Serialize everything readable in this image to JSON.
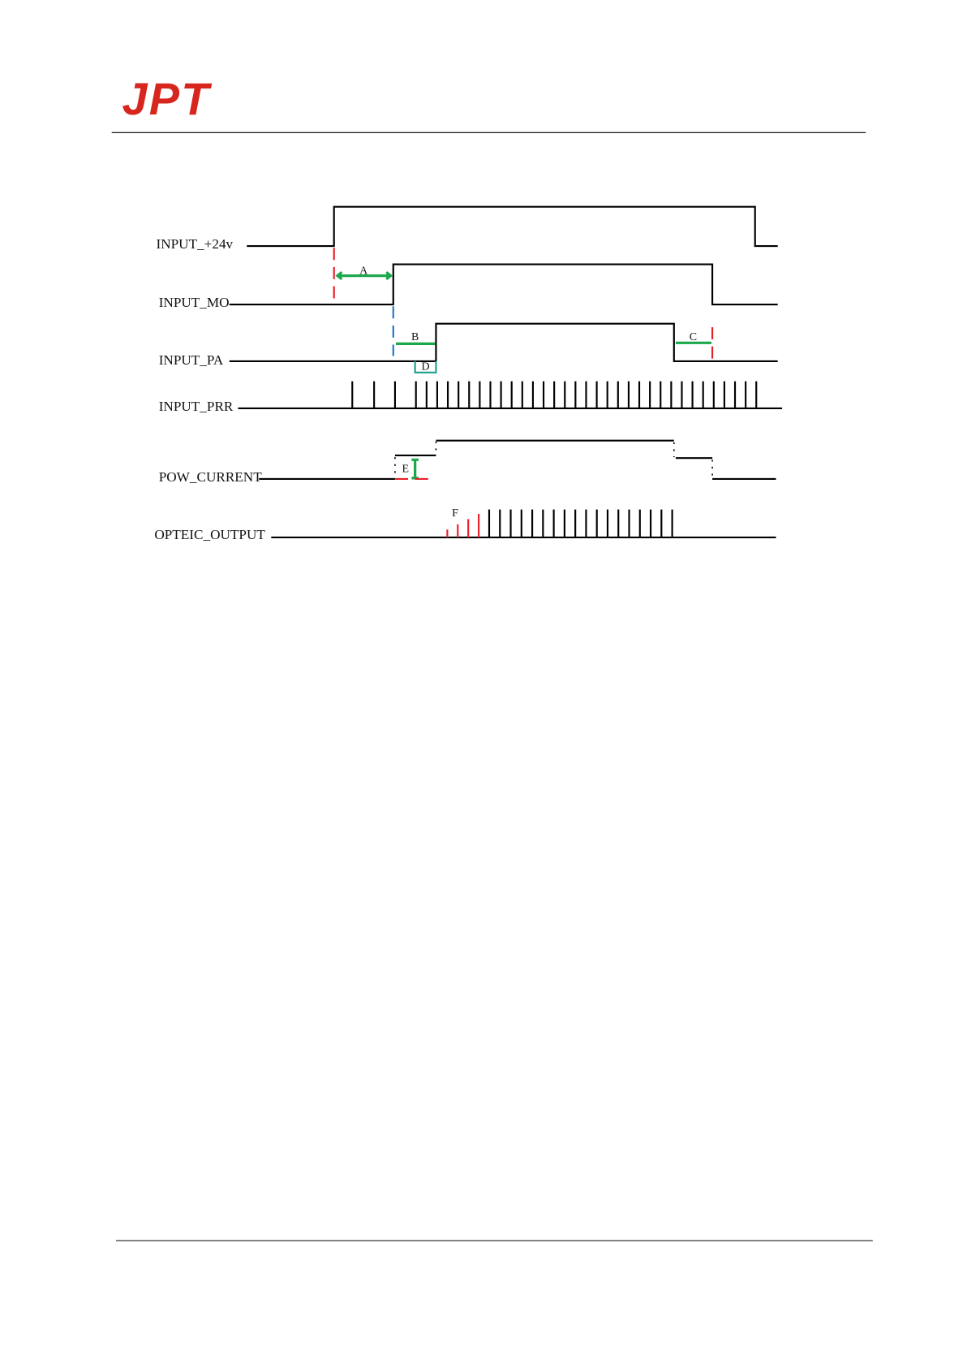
{
  "header": {
    "logo": "JPT"
  },
  "signals": [
    {
      "label": "INPUT_+24v"
    },
    {
      "label": "INPUT_MO"
    },
    {
      "label": "INPUT_PA"
    },
    {
      "label": "INPUT_PRR"
    },
    {
      "label": "POW_CURRENT"
    },
    {
      "label": "OPTEIC_OUTPUT"
    }
  ],
  "markers": [
    "A",
    "B",
    "C",
    "D",
    "E",
    "F"
  ]
}
